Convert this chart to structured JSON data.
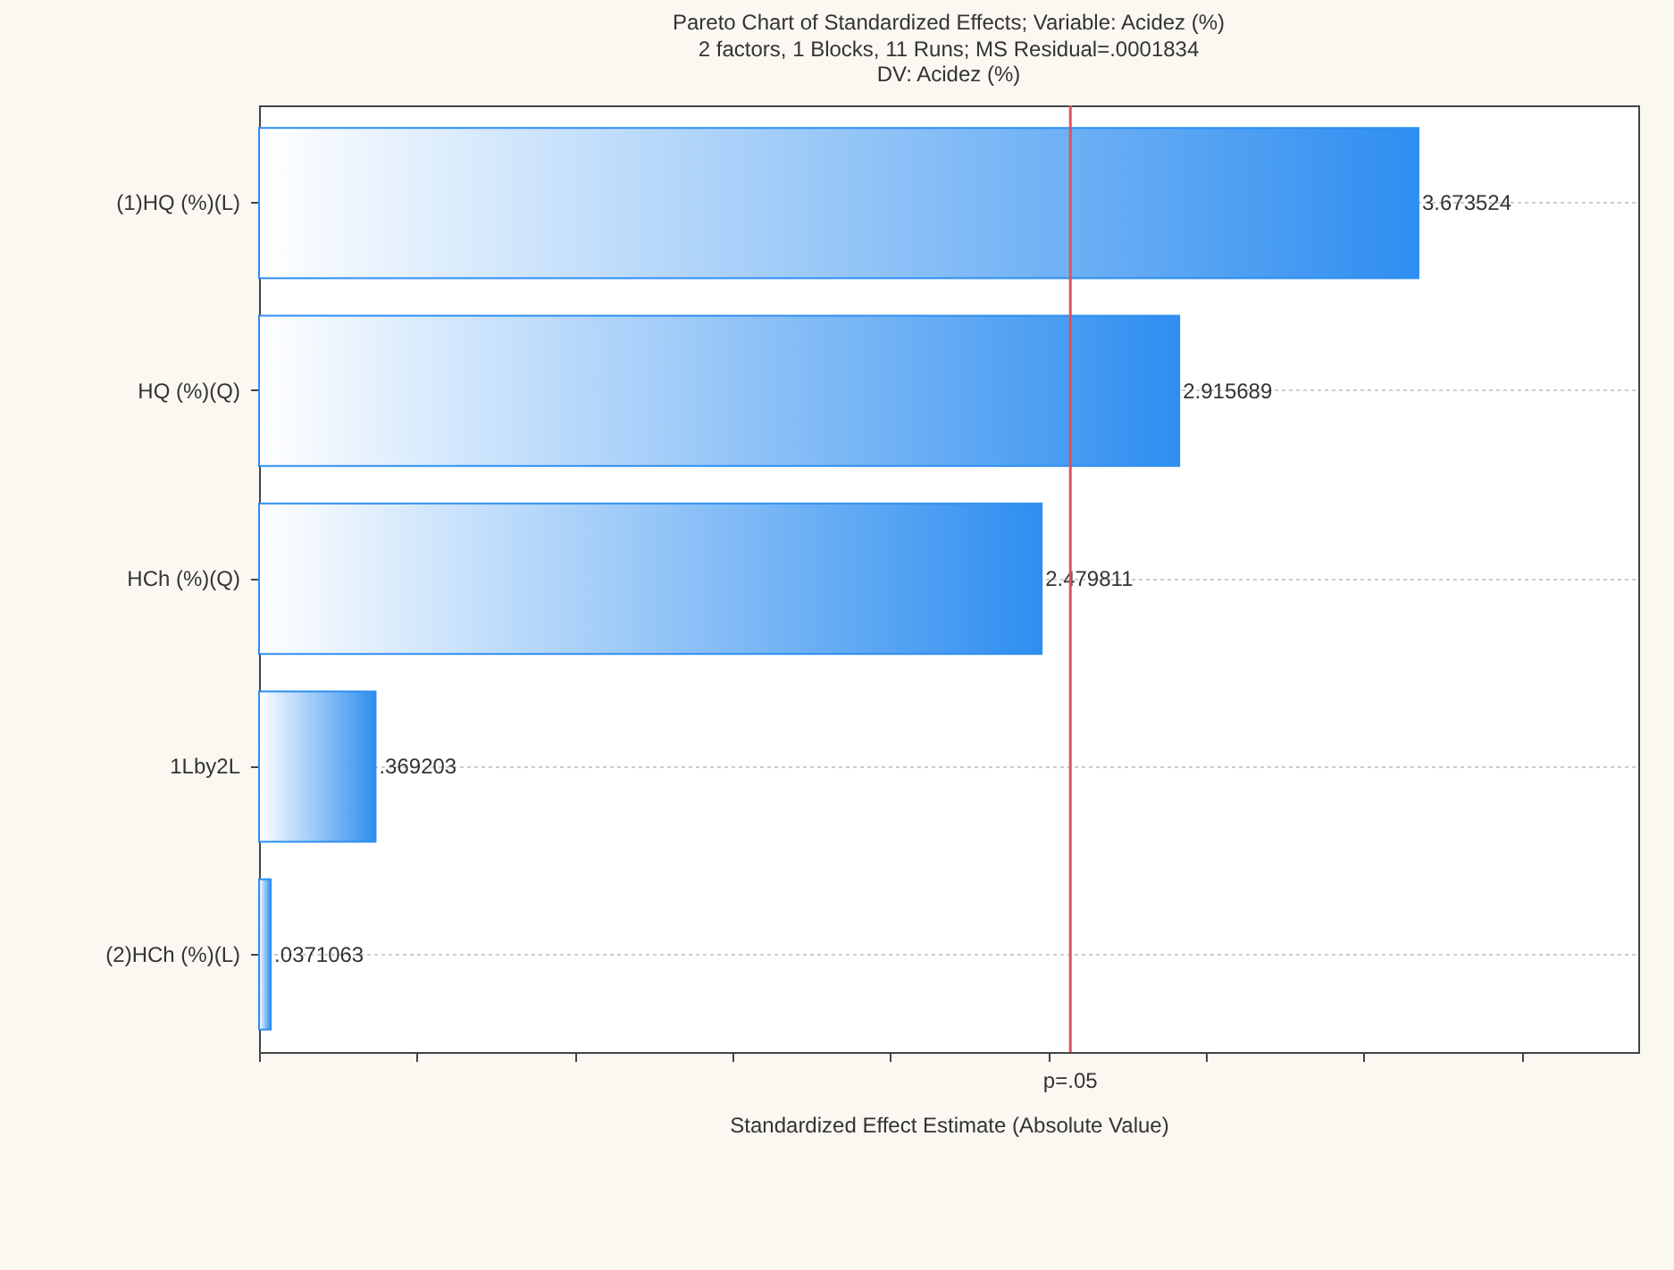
{
  "chart_data": {
    "type": "bar",
    "orientation": "horizontal",
    "title": "Pareto Chart of Standardized Effects; Variable: Acidez (%)",
    "subtitle": [
      "2 factors, 1 Blocks, 11 Runs; MS Residual=.0001834",
      "DV: Acidez (%)"
    ],
    "xlabel": "Standardized Effect Estimate (Absolute Value)",
    "categories": [
      "(1)HQ (%)(L)",
      "HQ (%)(Q)",
      "HCh (%)(Q)",
      "1Lby2L",
      "(2)HCh (%)(L)"
    ],
    "values": [
      3.673524,
      2.915689,
      2.479811,
      0.369203,
      0.0371063
    ],
    "value_labels": [
      "3.673524",
      "2.915689",
      "2.479811",
      ".369203",
      ".0371063"
    ],
    "color": "#2e8ef0",
    "xlim": [
      0,
      4.37
    ],
    "xticks": [
      {
        "value": 0,
        "label": null
      },
      {
        "value": 0.5,
        "label": null
      },
      {
        "value": 1,
        "label": null
      },
      {
        "value": 1.5,
        "label": null
      },
      {
        "value": 2,
        "label": null
      },
      {
        "value": 2.5,
        "label": null
      },
      {
        "value": 3,
        "label": null
      },
      {
        "value": 3.5,
        "label": null
      },
      {
        "value": 4,
        "label": null
      }
    ],
    "tick_labels": "y",
    "grid": "y",
    "ref_lines": [
      {
        "axis": "x",
        "value": 2.5706,
        "label": "p=.05",
        "color": "#e05060"
      }
    ]
  }
}
